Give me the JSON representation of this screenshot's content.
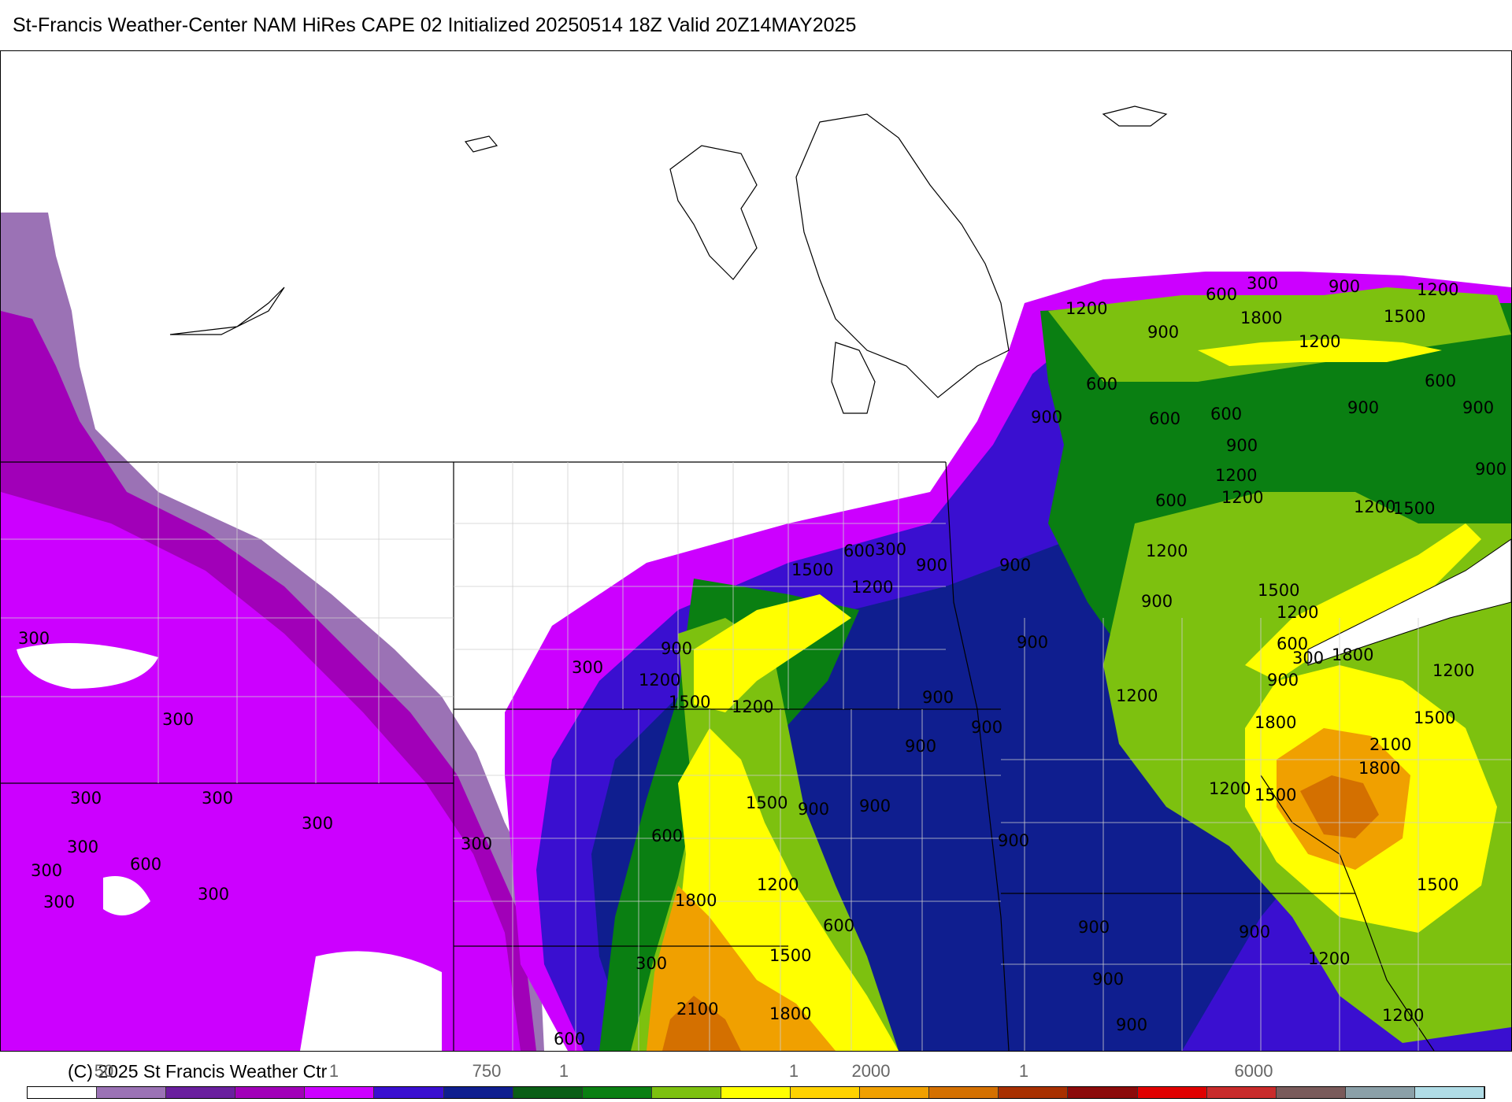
{
  "header": {
    "title": "St-Francis Weather-Center NAM HiRes CAPE  02 Initialized 20250514 18Z Valid 20Z14MAY2025"
  },
  "map": {
    "contour_labels": {
      "l300": "300",
      "l600": "600",
      "l900": "900",
      "l1200": "1200",
      "l1500": "1500",
      "l1800": "1800",
      "l2100": "2100"
    }
  },
  "footer": {
    "copyright": "(C) 2025 St Francis Weather Ctr",
    "tick_labels": [
      "50",
      "1",
      "750",
      "1",
      "1",
      "2000",
      "1",
      "6000"
    ]
  },
  "colorbar": {
    "colors": [
      "#ffffff",
      "#9b72b5",
      "#6a1f9e",
      "#a100b8",
      "#cc00ff",
      "#3a0fd0",
      "#0f1e8f",
      "#0a5e16",
      "#0a7f12",
      "#7dc10f",
      "#ffff00",
      "#ffd200",
      "#f0a000",
      "#d47000",
      "#a83000",
      "#8c0a0a",
      "#e00000",
      "#c92b2b",
      "#7a5a5a",
      "#8ba0a8",
      "#b0dce6"
    ]
  },
  "legend": {
    "fill_colors": {
      "c300": "#a100b8",
      "c600": "#cc00ff",
      "c900": "#3a0fd0",
      "cnavy": "#0f1e8f",
      "c1200": "#0a7f12",
      "clgreen": "#7dc10f",
      "c1500": "#ffff00",
      "c1800": "#f0a000",
      "c2100": "#d47000"
    }
  }
}
